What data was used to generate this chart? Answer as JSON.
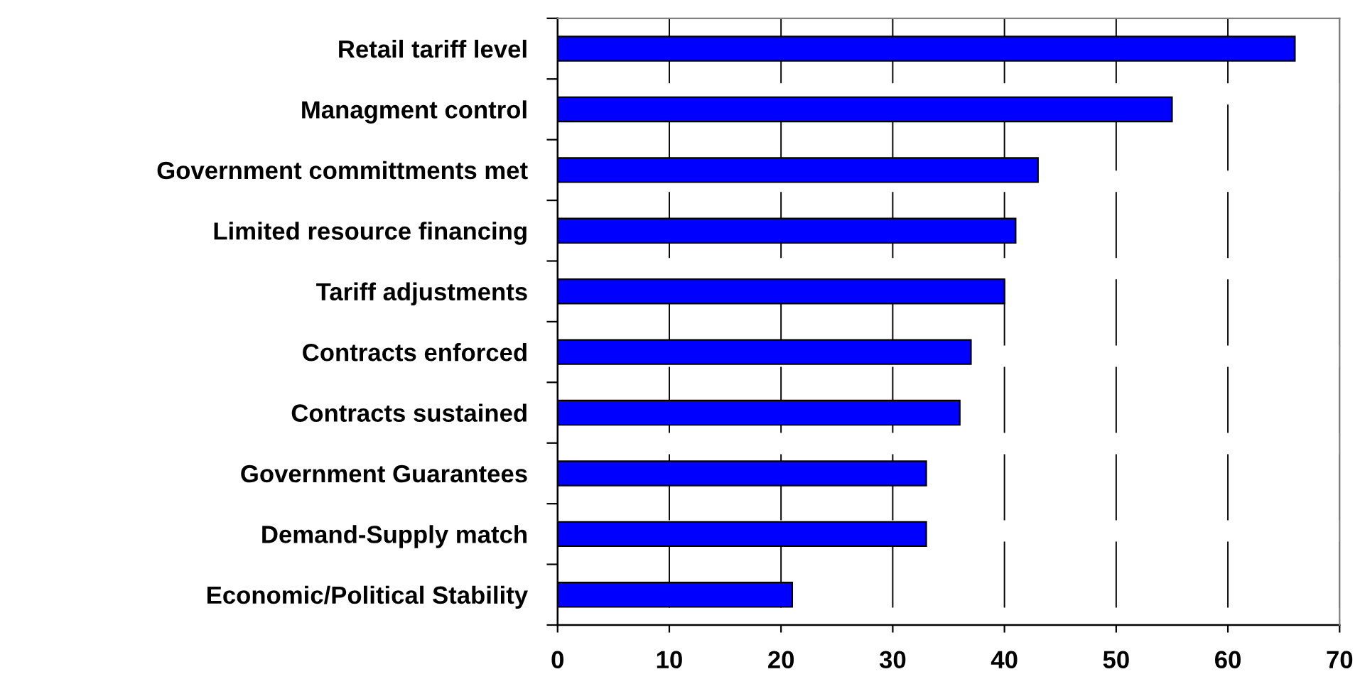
{
  "chart_data": {
    "type": "bar",
    "orientation": "horizontal",
    "categories": [
      "Retail tariff level",
      "Managment control",
      "Government committments met",
      "Limited resource financing",
      "Tariff adjustments",
      "Contracts enforced",
      "Contracts sustained",
      "Government Guarantees",
      "Demand-Supply match",
      "Economic/Political Stability"
    ],
    "values": [
      66,
      55,
      43,
      41,
      40,
      37,
      36,
      33,
      33,
      21
    ],
    "color": "#0000ff",
    "xlim": [
      0,
      70
    ],
    "xticks": [
      0,
      10,
      20,
      30,
      40,
      50,
      60,
      70
    ],
    "grid": "x"
  }
}
